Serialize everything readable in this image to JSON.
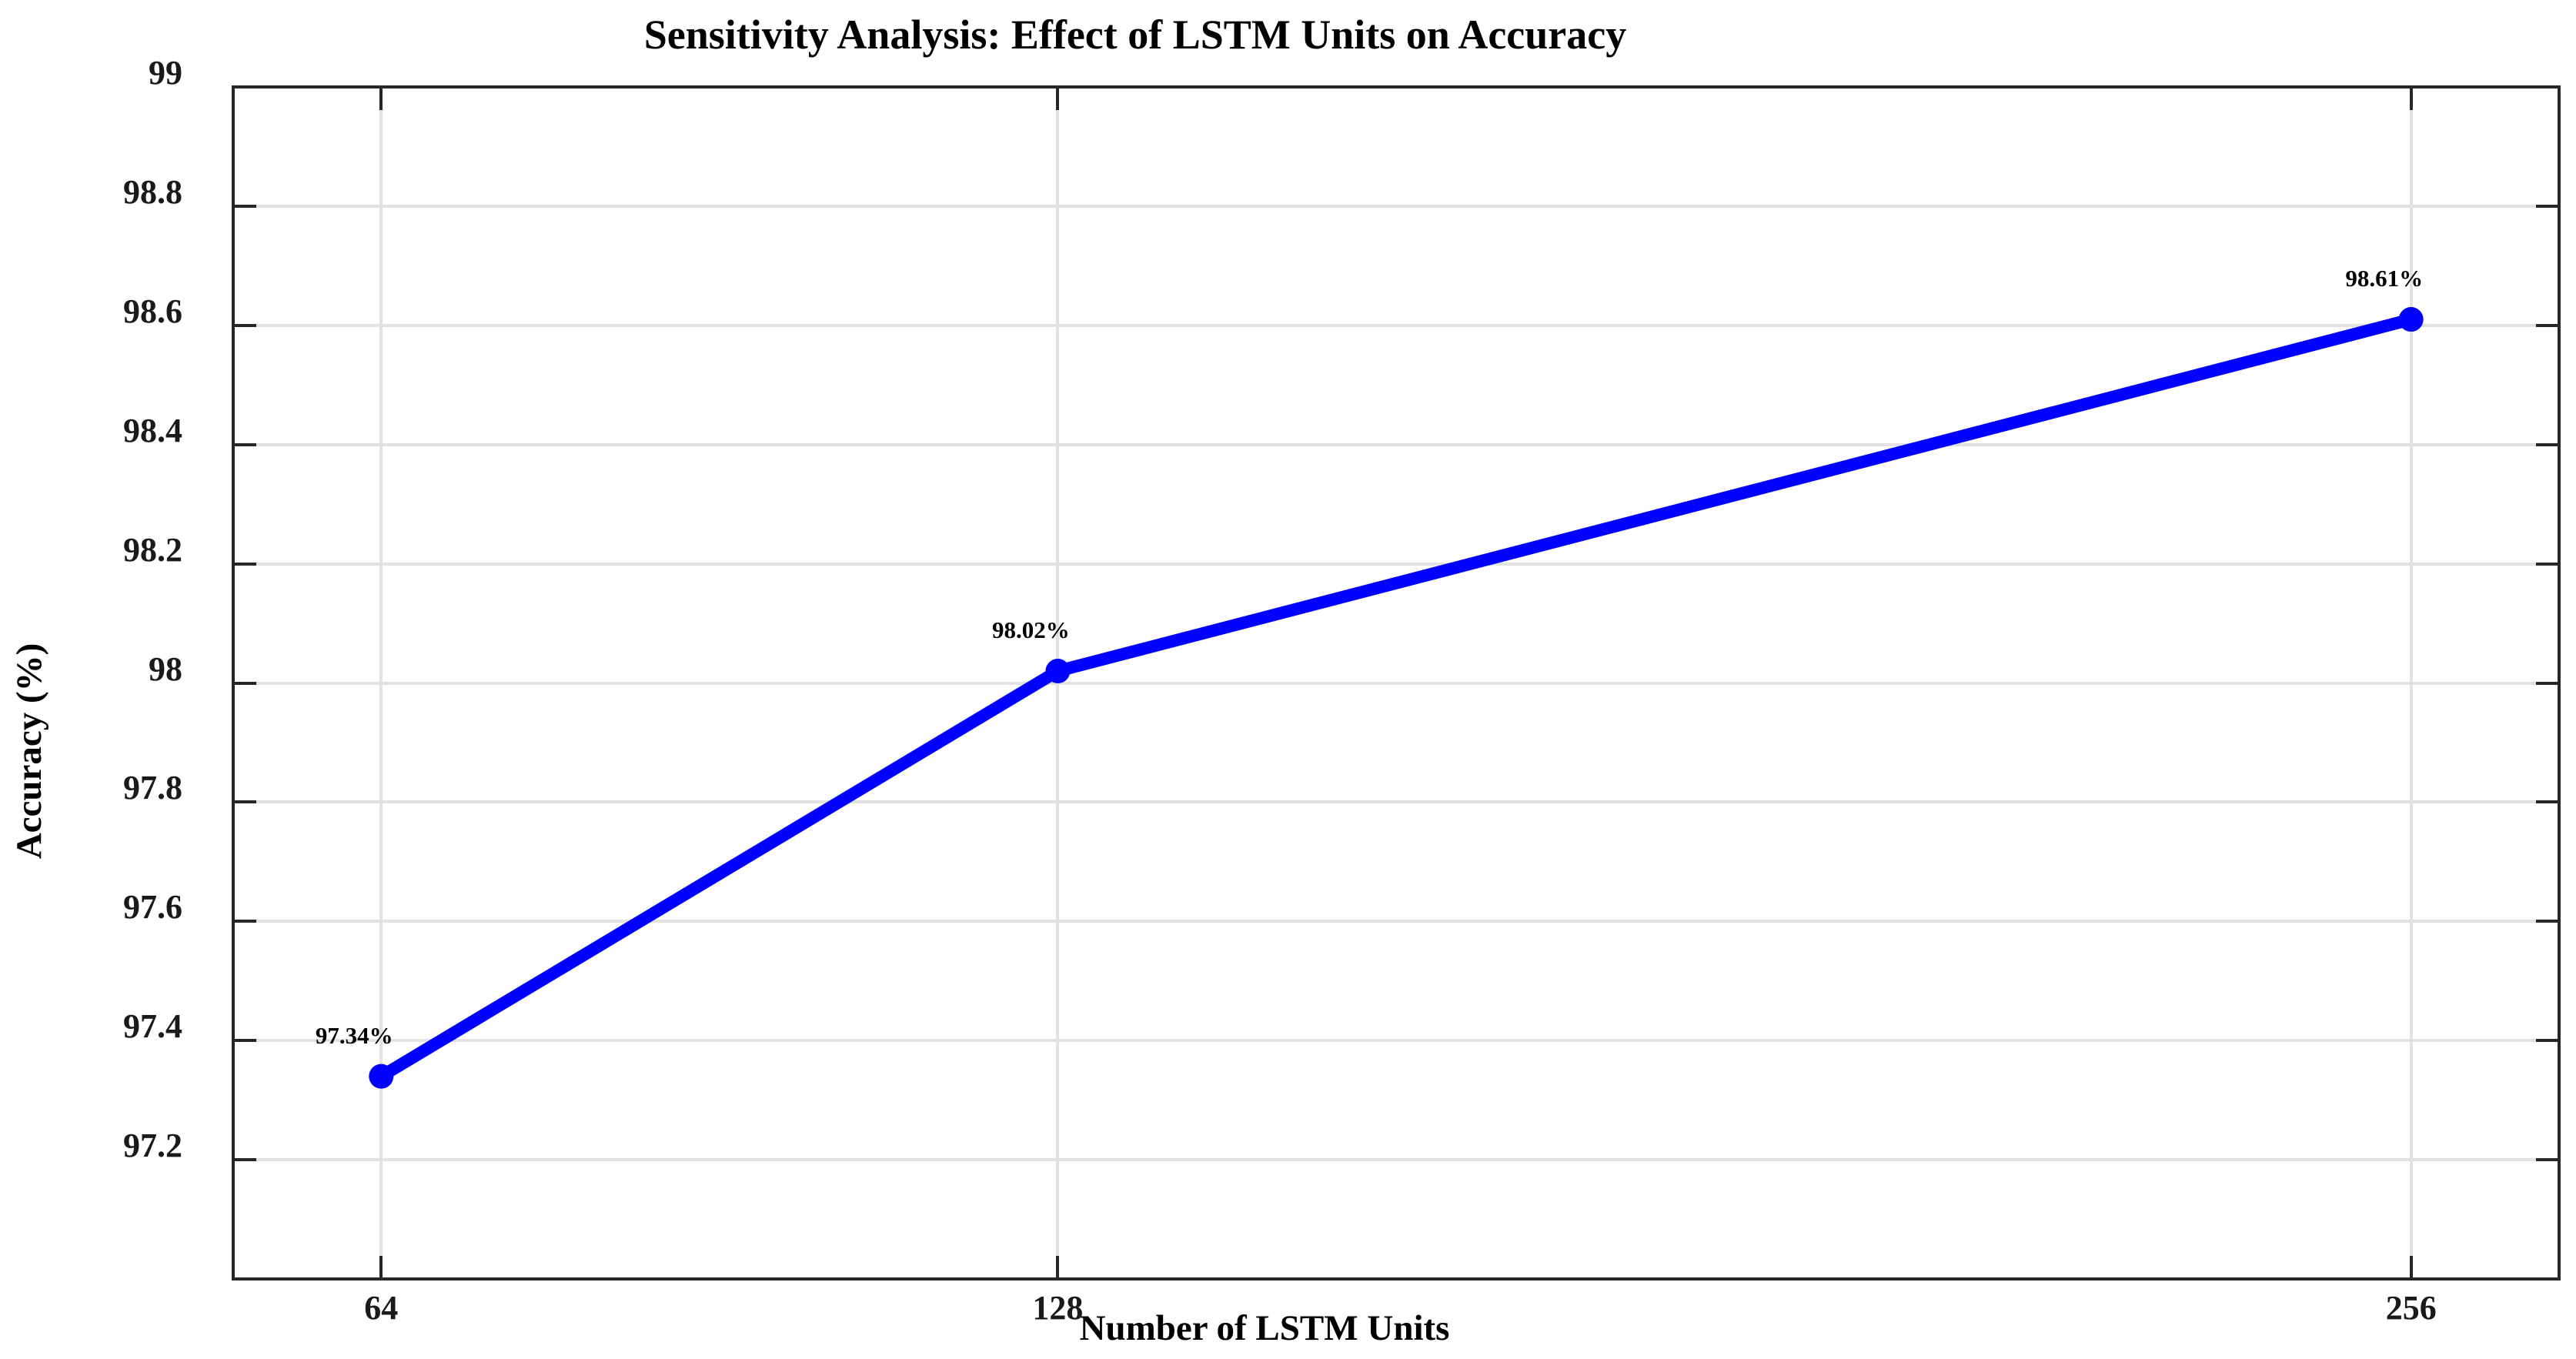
{
  "chart_data": {
    "type": "line",
    "title": "Sensitivity Analysis: Effect of LSTM Units on Accuracy",
    "xlabel": "Number of LSTM Units",
    "ylabel": "Accuracy (%)",
    "x": [
      64,
      128,
      256
    ],
    "series": [
      {
        "name": "Accuracy",
        "values": [
          97.34,
          98.02,
          98.61
        ]
      }
    ],
    "point_labels": [
      "97.34%",
      "98.02%",
      "98.61%"
    ],
    "xlim": [
      50,
      270
    ],
    "ylim": [
      97,
      99
    ],
    "xticks": {
      "values": [
        64,
        128,
        256
      ],
      "labels": [
        "64",
        "128",
        "256"
      ]
    },
    "yticks": {
      "values": [
        99,
        98.8,
        98.6,
        98.4,
        98.2,
        98,
        97.8,
        97.6,
        97.4,
        97.2
      ],
      "labels": [
        "99",
        "98.8",
        "98.6",
        "98.4",
        "98.2",
        "98",
        "97.8",
        "97.6",
        "97.4",
        "97.2"
      ]
    },
    "grid": true,
    "legend": "none",
    "colors": {
      "line": "#0000FF",
      "marker": "#0000FF",
      "grid": "#E2E2E2",
      "axis": "#262626",
      "text": "#000000"
    }
  }
}
